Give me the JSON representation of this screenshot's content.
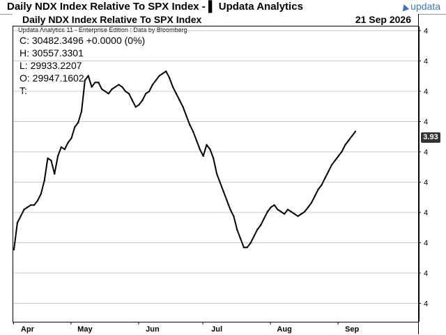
{
  "window": {
    "title": "Daily NDX Index Relative To SPX Index - ▌ Updata Analytics",
    "brand": "updata"
  },
  "header": {
    "title": "Daily NDX Index Relative To SPX Index",
    "date": "21 Sep 2026"
  },
  "source": "Updata Analytics 11 - Enterprise Edition : Data by Bloomberg",
  "ohlc": {
    "close": "C: 30482.3496  +0.0000 (0%)",
    "high": "H: 30557.3301",
    "low": "L: 29933.2207",
    "open": "O: 29947.1602",
    "time": "T:"
  },
  "last_value_badge": "3.93",
  "chart_data": {
    "type": "line",
    "title": "Daily NDX Index Relative To SPX Index",
    "xlabel": "",
    "ylabel": "",
    "ylim": [
      0,
      100
    ],
    "y_tick_labels": [
      "4",
      "4",
      "4",
      "4",
      "4",
      "4",
      "4",
      "4",
      "4",
      "4"
    ],
    "month_labels": [
      {
        "label": "Apr",
        "index": 4
      },
      {
        "label": "May",
        "index": 21
      },
      {
        "label": "Jun",
        "index": 41
      },
      {
        "label": "Jul",
        "index": 60
      },
      {
        "label": "Aug",
        "index": 80
      },
      {
        "label": "Sep",
        "index": 100
      }
    ],
    "series": [
      {
        "values": [
          13,
          25,
          28,
          31,
          32,
          33,
          33,
          35,
          38,
          44,
          54,
          53,
          47,
          55,
          59,
          58,
          61,
          63,
          68,
          70,
          75,
          89,
          91,
          86,
          88,
          88,
          85,
          84,
          83,
          85,
          86,
          87,
          86,
          84,
          83,
          80,
          77,
          78,
          80,
          83,
          84,
          87,
          89,
          91,
          92,
          93,
          90,
          86,
          83,
          80,
          77,
          73,
          69,
          66,
          62,
          58,
          55,
          60,
          58,
          54,
          47,
          43,
          39,
          35,
          31,
          28,
          22,
          18,
          14,
          14,
          16,
          19,
          22,
          24,
          27,
          30,
          32,
          33,
          31,
          30,
          29,
          31,
          30,
          29,
          28,
          29,
          30,
          32,
          34,
          37,
          40,
          42,
          45,
          48,
          51,
          53,
          55,
          57,
          60,
          62,
          64,
          66
        ]
      }
    ]
  }
}
